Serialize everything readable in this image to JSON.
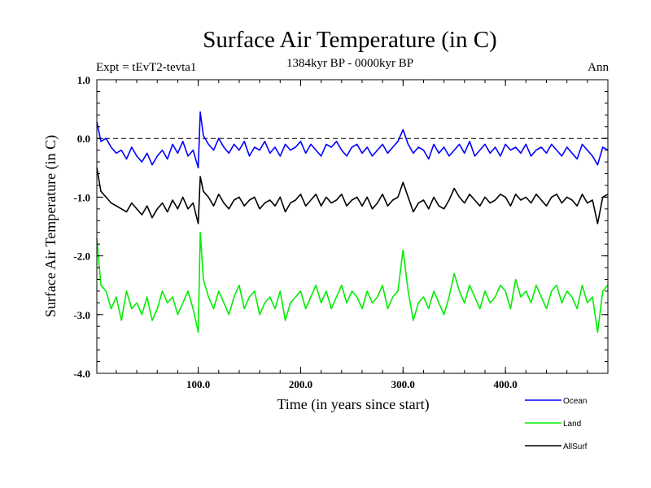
{
  "chart_data": {
    "type": "line",
    "title": "Surface Air Temperature (in C)",
    "subtitle_left": "Expt = tEvT2-tevta1",
    "subtitle_center": "1384kyr BP - 0000kyr BP",
    "subtitle_right": "Ann",
    "xlabel": "Time (in years since start)",
    "ylabel": "Surface Air Temperature (in C)",
    "xlim": [
      1,
      500
    ],
    "ylim": [
      -4.0,
      1.0
    ],
    "reference_line": 0.0,
    "x_ticks": [
      {
        "value": 100,
        "label": "100.0"
      },
      {
        "value": 200,
        "label": "200.0"
      },
      {
        "value": 300,
        "label": "300.0"
      },
      {
        "value": 400,
        "label": "400.0"
      }
    ],
    "y_ticks": [
      {
        "value": 1.0,
        "label": "1.0"
      },
      {
        "value": 0.0,
        "label": "0.0"
      },
      {
        "value": -1.0,
        "label": "-1.0"
      },
      {
        "value": -2.0,
        "label": "-2.0"
      },
      {
        "value": -3.0,
        "label": "-3.0"
      },
      {
        "value": -4.0,
        "label": "-4.0"
      }
    ],
    "x": [
      1,
      5,
      10,
      15,
      20,
      25,
      30,
      35,
      40,
      45,
      50,
      55,
      60,
      65,
      70,
      75,
      80,
      85,
      90,
      95,
      100,
      102,
      105,
      110,
      115,
      120,
      125,
      130,
      135,
      140,
      145,
      150,
      155,
      160,
      165,
      170,
      175,
      180,
      185,
      190,
      195,
      200,
      205,
      210,
      215,
      220,
      225,
      230,
      235,
      240,
      245,
      250,
      255,
      260,
      265,
      270,
      275,
      280,
      285,
      290,
      295,
      300,
      305,
      310,
      315,
      320,
      325,
      330,
      335,
      340,
      345,
      350,
      355,
      360,
      365,
      370,
      375,
      380,
      385,
      390,
      395,
      400,
      405,
      410,
      415,
      420,
      425,
      430,
      435,
      440,
      445,
      450,
      455,
      460,
      465,
      470,
      475,
      480,
      485,
      490,
      495,
      500
    ],
    "series": [
      {
        "name": "Ocean",
        "color": "#0000ff",
        "values": [
          0.28,
          -0.05,
          0.0,
          -0.15,
          -0.25,
          -0.2,
          -0.35,
          -0.15,
          -0.3,
          -0.4,
          -0.25,
          -0.45,
          -0.3,
          -0.2,
          -0.35,
          -0.1,
          -0.25,
          -0.05,
          -0.3,
          -0.2,
          -0.5,
          0.45,
          0.05,
          -0.1,
          -0.2,
          0.0,
          -0.15,
          -0.25,
          -0.1,
          -0.2,
          -0.05,
          -0.3,
          -0.15,
          -0.2,
          -0.05,
          -0.25,
          -0.15,
          -0.3,
          -0.1,
          -0.2,
          -0.15,
          -0.05,
          -0.25,
          -0.1,
          -0.2,
          -0.3,
          -0.1,
          -0.15,
          -0.05,
          -0.2,
          -0.3,
          -0.15,
          -0.1,
          -0.25,
          -0.15,
          -0.3,
          -0.2,
          -0.1,
          -0.25,
          -0.15,
          -0.05,
          0.15,
          -0.1,
          -0.25,
          -0.15,
          -0.2,
          -0.35,
          -0.1,
          -0.25,
          -0.15,
          -0.3,
          -0.2,
          -0.1,
          -0.25,
          -0.05,
          -0.3,
          -0.2,
          -0.1,
          -0.25,
          -0.15,
          -0.3,
          -0.1,
          -0.2,
          -0.15,
          -0.25,
          -0.1,
          -0.3,
          -0.2,
          -0.15,
          -0.25,
          -0.1,
          -0.2,
          -0.3,
          -0.15,
          -0.25,
          -0.35,
          -0.1,
          -0.2,
          -0.3,
          -0.45,
          -0.15,
          -0.2
        ]
      },
      {
        "name": "Land",
        "color": "#00ee00",
        "values": [
          -1.7,
          -2.5,
          -2.6,
          -2.9,
          -2.7,
          -3.1,
          -2.6,
          -2.9,
          -2.8,
          -3.0,
          -2.7,
          -3.1,
          -2.9,
          -2.6,
          -2.8,
          -2.7,
          -3.0,
          -2.8,
          -2.6,
          -2.9,
          -3.3,
          -1.6,
          -2.4,
          -2.7,
          -2.9,
          -2.6,
          -2.8,
          -3.0,
          -2.7,
          -2.5,
          -2.9,
          -2.7,
          -2.6,
          -3.0,
          -2.8,
          -2.7,
          -2.9,
          -2.6,
          -3.1,
          -2.8,
          -2.7,
          -2.6,
          -2.9,
          -2.7,
          -2.5,
          -2.8,
          -2.6,
          -2.9,
          -2.7,
          -2.5,
          -2.8,
          -2.6,
          -2.7,
          -2.9,
          -2.6,
          -2.8,
          -2.7,
          -2.5,
          -2.9,
          -2.7,
          -2.6,
          -1.9,
          -2.6,
          -3.1,
          -2.8,
          -2.7,
          -2.9,
          -2.6,
          -2.8,
          -3.0,
          -2.7,
          -2.3,
          -2.6,
          -2.8,
          -2.5,
          -2.7,
          -2.9,
          -2.6,
          -2.8,
          -2.7,
          -2.5,
          -2.6,
          -2.9,
          -2.4,
          -2.7,
          -2.6,
          -2.8,
          -2.5,
          -2.7,
          -2.9,
          -2.6,
          -2.5,
          -2.8,
          -2.6,
          -2.7,
          -2.9,
          -2.5,
          -2.8,
          -2.7,
          -3.3,
          -2.6,
          -2.5
        ]
      },
      {
        "name": "AllSurf",
        "color": "#000000",
        "values": [
          -0.5,
          -0.9,
          -1.0,
          -1.1,
          -1.15,
          -1.2,
          -1.25,
          -1.1,
          -1.2,
          -1.3,
          -1.15,
          -1.35,
          -1.2,
          -1.1,
          -1.25,
          -1.05,
          -1.2,
          -1.0,
          -1.2,
          -1.1,
          -1.45,
          -0.65,
          -0.9,
          -1.0,
          -1.15,
          -0.95,
          -1.1,
          -1.2,
          -1.05,
          -1.0,
          -1.15,
          -1.05,
          -1.0,
          -1.2,
          -1.1,
          -1.05,
          -1.15,
          -1.0,
          -1.25,
          -1.1,
          -1.05,
          -0.95,
          -1.15,
          -1.05,
          -0.95,
          -1.15,
          -1.0,
          -1.1,
          -1.05,
          -0.95,
          -1.15,
          -1.05,
          -1.0,
          -1.15,
          -1.0,
          -1.2,
          -1.1,
          -0.95,
          -1.15,
          -1.05,
          -1.0,
          -0.75,
          -1.0,
          -1.25,
          -1.1,
          -1.05,
          -1.2,
          -1.0,
          -1.15,
          -1.2,
          -1.05,
          -0.85,
          -1.0,
          -1.1,
          -0.95,
          -1.05,
          -1.15,
          -1.0,
          -1.1,
          -1.05,
          -0.95,
          -1.0,
          -1.15,
          -0.95,
          -1.05,
          -1.0,
          -1.1,
          -0.95,
          -1.05,
          -1.15,
          -1.0,
          -0.95,
          -1.1,
          -1.0,
          -1.05,
          -1.15,
          -0.95,
          -1.1,
          -1.05,
          -1.45,
          -1.0,
          -0.95
        ]
      }
    ]
  }
}
